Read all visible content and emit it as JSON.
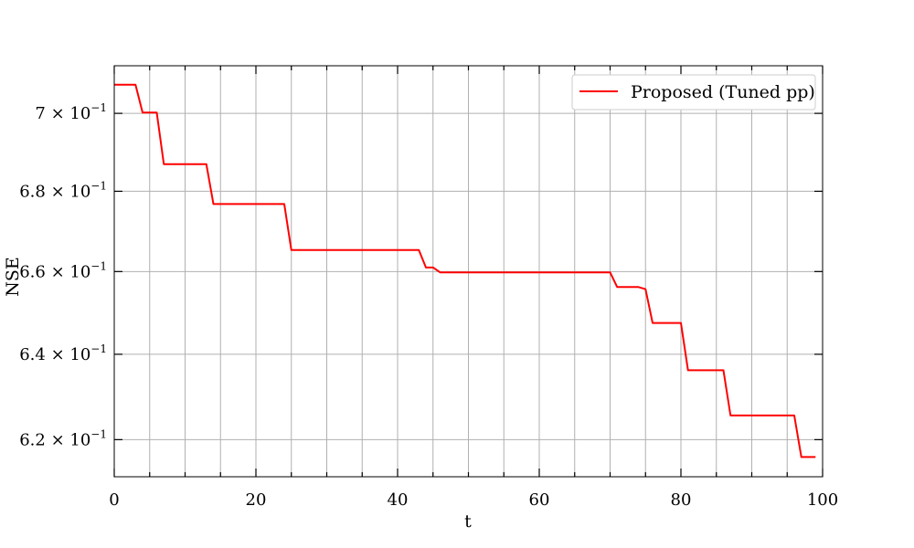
{
  "chart_data": {
    "type": "line",
    "title": "",
    "xlabel": "t",
    "ylabel": "NSE",
    "xlim": [
      0,
      100
    ],
    "ylim": [
      0.6115,
      0.7125
    ],
    "y_scale": "log",
    "grid": true,
    "legend_position": "top-right",
    "x_ticks": [
      {
        "value": 0,
        "label": "0"
      },
      {
        "value": 20,
        "label": "20"
      },
      {
        "value": 40,
        "label": "40"
      },
      {
        "value": 60,
        "label": "60"
      },
      {
        "value": 80,
        "label": "80"
      },
      {
        "value": 100,
        "label": "100"
      }
    ],
    "x_minor_ticks": [
      5,
      10,
      15,
      25,
      30,
      35,
      45,
      50,
      55,
      65,
      70,
      75,
      85,
      90,
      95
    ],
    "y_ticks": [
      {
        "value": 0.62,
        "mantissa": "6.2",
        "base": "10",
        "exp": "−1"
      },
      {
        "value": 0.64,
        "mantissa": "6.4",
        "base": "10",
        "exp": "−1"
      },
      {
        "value": 0.66,
        "mantissa": "6.6",
        "base": "10",
        "exp": "−1"
      },
      {
        "value": 0.68,
        "mantissa": "6.8",
        "base": "10",
        "exp": "−1"
      },
      {
        "value": 0.7,
        "mantissa": "7",
        "base": "10",
        "exp": "−1"
      }
    ],
    "series": [
      {
        "name": "Proposed (Tuned pp)",
        "color": "#ff0000",
        "x": [
          0,
          3,
          4,
          6,
          7,
          13,
          14,
          24,
          25,
          43,
          44,
          45,
          46,
          70,
          71,
          74,
          75,
          76,
          80,
          81,
          86,
          87,
          96,
          97,
          99
        ],
        "y": [
          0.7075,
          0.7075,
          0.7002,
          0.7002,
          0.6869,
          0.6869,
          0.6768,
          0.6768,
          0.6653,
          0.6653,
          0.661,
          0.661,
          0.6598,
          0.6598,
          0.6562,
          0.6562,
          0.6557,
          0.6475,
          0.6475,
          0.6362,
          0.6362,
          0.6256,
          0.6256,
          0.616,
          0.616
        ]
      }
    ]
  }
}
